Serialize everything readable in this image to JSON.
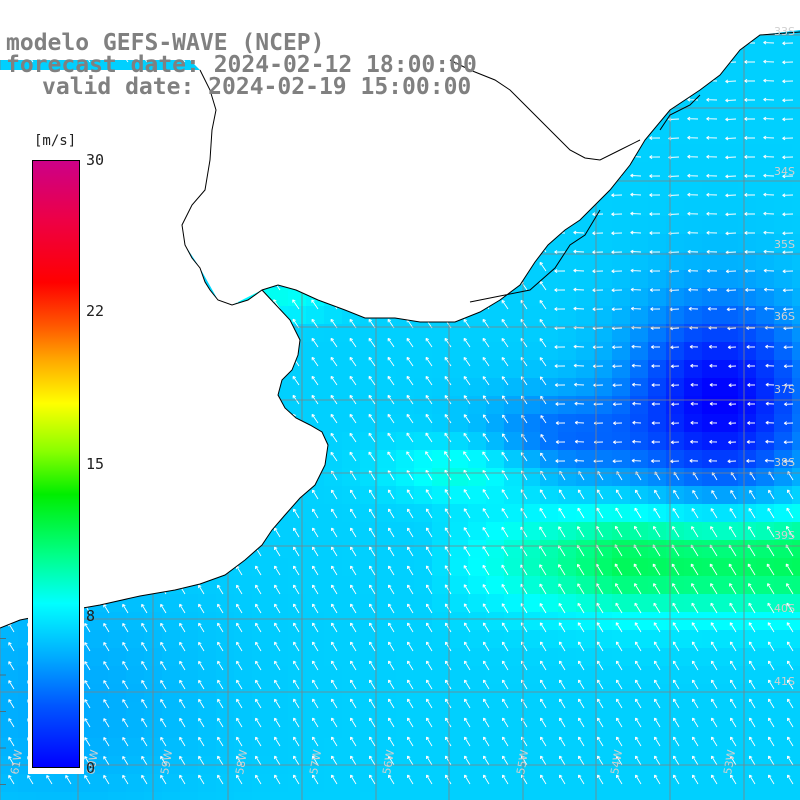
{
  "title": {
    "line1": "modelo GEFS-WAVE (NCEP)",
    "line2": "forecast date: 2024-02-12 18:00:00",
    "line3": "valid date: 2024-02-19 15:00:00"
  },
  "colorbar": {
    "unit": "[m/s]",
    "ticks": [
      {
        "label": "30",
        "value": 30
      },
      {
        "label": "22",
        "value": 22
      },
      {
        "label": "15",
        "value": 15
      },
      {
        "label": "8",
        "value": 8
      },
      {
        "label": "0",
        "value": 0
      }
    ],
    "colors": [
      "#0000ff",
      "#00aaff",
      "#00ffff",
      "#00ee00",
      "#ffff00",
      "#ff0000",
      "#cc0088"
    ]
  },
  "map": {
    "lat_labels": [
      "33S",
      "34S",
      "35S",
      "36S",
      "37S",
      "38S",
      "39S",
      "40S",
      "41S"
    ],
    "lon_labels": [
      "61W",
      "60W",
      "59W",
      "58W",
      "57W",
      "56W",
      "55W",
      "54W",
      "53W"
    ],
    "land_color": "#ffffff",
    "coast_color": "#000000",
    "grid_color": "#808080",
    "arrow_color": "#ffffff"
  }
}
